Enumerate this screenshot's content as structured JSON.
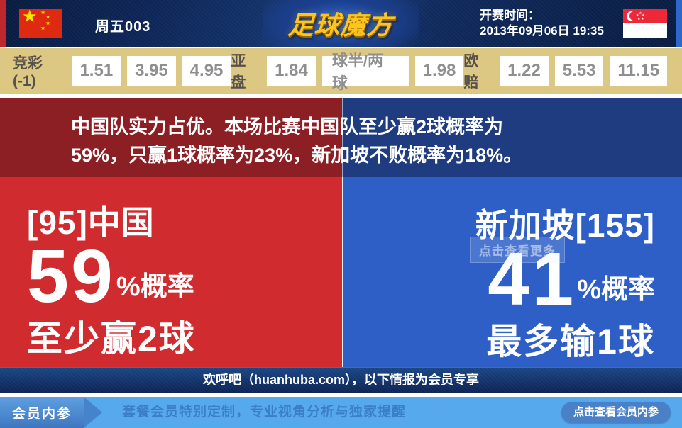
{
  "header": {
    "match_code": "周五003",
    "logo_text": "足球魔方",
    "kickoff_label": "开赛时间：",
    "kickoff_time": "2013年09月06日 19:35",
    "home_flag_icon": "china-flag",
    "away_flag_icon": "singapore-flag"
  },
  "odds": {
    "jingcai": {
      "label": "竞彩(-1)",
      "values": [
        "1.51",
        "3.95",
        "4.95"
      ]
    },
    "yapan": {
      "label": "亚盘",
      "values": [
        "1.84",
        "球半/两球",
        "1.98"
      ]
    },
    "oupei": {
      "label": "欧赔",
      "values": [
        "1.22",
        "5.53",
        "11.15"
      ]
    }
  },
  "analysis": {
    "line1": "中国队实力占优。本场比赛中国队至少赢2球概率为",
    "line2": "59%，只赢1球概率为23%，新加坡不败概率为18%。"
  },
  "home_panel": {
    "team": "[95]中国",
    "probability": "59",
    "prob_suffix": "%概率",
    "outcome": "至少赢2球"
  },
  "away_panel": {
    "team": "新加坡[155]",
    "probability": "41",
    "prob_suffix": "%概率",
    "outcome": "最多输1球",
    "watermark": "点击查看更多"
  },
  "promo_bar": {
    "text": "欢呼吧（huanhuba.com），以下情报为会员专享"
  },
  "footer": {
    "badge": "会员内参",
    "tagline": "套餐会员特别定制，专业视角分析与独家提醒",
    "button": "点击查看会员内参"
  },
  "colors": {
    "edge_red": "#bf272c",
    "edge_blue": "#2a68cf",
    "header_navy": "#0d2557",
    "logo_gold": "#fdc51d",
    "odds_bg": "#dcc883",
    "odds_number": "#8f8f8f",
    "banner_home": "#8b1f24",
    "banner_away": "#1e3c7f",
    "panel_home": "#d02b2f",
    "panel_away": "#2e5fc6",
    "promo_navy": "#0c2355",
    "footer_blue": "#57a9ee",
    "footer_badge": "#4583cb",
    "footer_text": "#3b7ec6"
  }
}
